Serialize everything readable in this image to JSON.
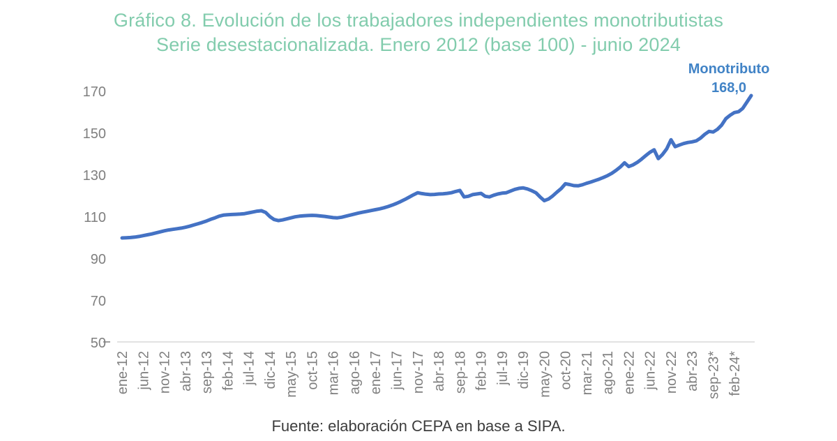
{
  "title": {
    "line1": "Gráfico 8. Evolución de los trabajadores independientes monotributistas",
    "line2": "Serie desestacionalizada. Enero 2012 (base 100) - junio 2024"
  },
  "annotation": {
    "label": "Monotributo",
    "value": "168,0"
  },
  "footer": "Fuente: elaboración CEPA en base a SIPA.",
  "colors": {
    "title": "#82CCAD",
    "line": "#4472C4",
    "annotation": "#4183C6",
    "axis_text": "#7F7F7F",
    "axis_line": "#D9D9D9",
    "footer": "#3D3D3D"
  },
  "chart_data": {
    "type": "line",
    "title": "Gráfico 8. Evolución de los trabajadores independientes monotributistas — Serie desestacionalizada. Enero 2012 (base 100) - junio 2024",
    "x_start": "ene-12",
    "x_end": "jun-24",
    "x_tick_interval_months": 5,
    "x_tick_labels": [
      "ene-12",
      "jun-12",
      "nov-12",
      "abr-13",
      "sep-13",
      "feb-14",
      "jul-14",
      "dic-14",
      "may-15",
      "oct-15",
      "mar-16",
      "ago-16",
      "ene-17",
      "jun-17",
      "nov-17",
      "abr-18",
      "sep-18",
      "feb-19",
      "jul-19",
      "dic-19",
      "may-20",
      "oct-20",
      "mar-21",
      "ago-21",
      "ene-22",
      "jun-22",
      "nov-22",
      "abr-23",
      "sep-23*",
      "feb-24*"
    ],
    "y_ticks": [
      50,
      70,
      90,
      110,
      130,
      150,
      170
    ],
    "ylim": [
      50,
      175
    ],
    "grid": false,
    "legend_position": "top-right-annotation",
    "last_value_label": "168,0",
    "series": [
      {
        "name": "Monotributo",
        "values": [
          100.0,
          100.1,
          100.2,
          100.4,
          100.7,
          101.1,
          101.5,
          101.9,
          102.4,
          102.9,
          103.4,
          103.8,
          104.1,
          104.4,
          104.7,
          105.1,
          105.6,
          106.2,
          106.8,
          107.4,
          108.1,
          108.9,
          109.6,
          110.4,
          110.9,
          111.1,
          111.2,
          111.3,
          111.4,
          111.6,
          112.0,
          112.4,
          112.8,
          113.0,
          112.2,
          110.2,
          108.8,
          108.3,
          108.6,
          109.1,
          109.6,
          110.1,
          110.4,
          110.6,
          110.7,
          110.8,
          110.7,
          110.5,
          110.3,
          110.0,
          109.7,
          109.6,
          109.9,
          110.4,
          110.9,
          111.4,
          111.9,
          112.3,
          112.7,
          113.1,
          113.5,
          113.9,
          114.4,
          115.0,
          115.7,
          116.5,
          117.4,
          118.4,
          119.5,
          120.6,
          121.6,
          121.2,
          120.9,
          120.7,
          120.8,
          121.0,
          121.1,
          121.3,
          121.6,
          122.2,
          122.7,
          119.6,
          119.9,
          120.7,
          121.0,
          121.3,
          119.9,
          119.6,
          120.4,
          121.0,
          121.4,
          121.6,
          122.4,
          123.2,
          123.7,
          123.9,
          123.4,
          122.6,
          121.6,
          119.6,
          117.8,
          118.6,
          120.1,
          121.9,
          123.6,
          125.9,
          125.5,
          125.0,
          124.9,
          125.4,
          126.1,
          126.7,
          127.4,
          128.1,
          128.9,
          129.8,
          130.9,
          132.3,
          133.9,
          135.9,
          134.1,
          134.9,
          136.1,
          137.6,
          139.3,
          140.9,
          142.1,
          137.9,
          139.9,
          142.6,
          146.9,
          143.6,
          144.4,
          145.1,
          145.6,
          145.9,
          146.4,
          147.7,
          149.5,
          150.9,
          150.6,
          151.9,
          153.9,
          157.0,
          158.6,
          159.9,
          160.3,
          161.9,
          164.9,
          168.0
        ]
      }
    ]
  }
}
